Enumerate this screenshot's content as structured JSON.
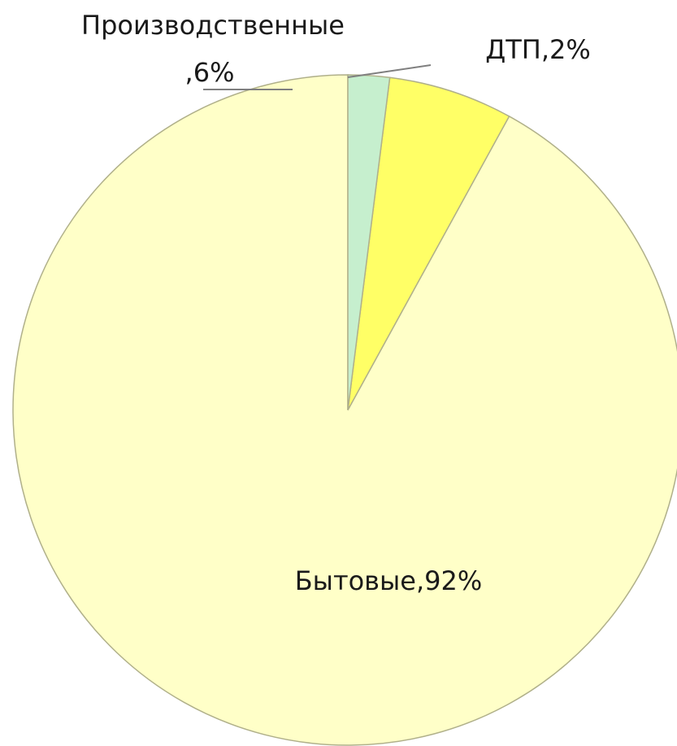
{
  "chart_data": {
    "type": "pie",
    "title": "",
    "start_angle_deg": 0,
    "direction": "counterclockwise",
    "slices": [
      {
        "label": "Бытовые",
        "value": 92,
        "value_label": "Бытовые,92%",
        "color": "#FFFFC8"
      },
      {
        "label": "Производственные",
        "value": 6,
        "value_label_lines": [
          "Производственные",
          ",6%"
        ],
        "color": "#FFFF66"
      },
      {
        "label": "ДТП",
        "value": 2,
        "value_label": "ДТП,2%",
        "color": "#C6EFCE"
      }
    ],
    "slice_border_color": "#B0B08A",
    "leader_line_color": "#7F7F7F"
  }
}
